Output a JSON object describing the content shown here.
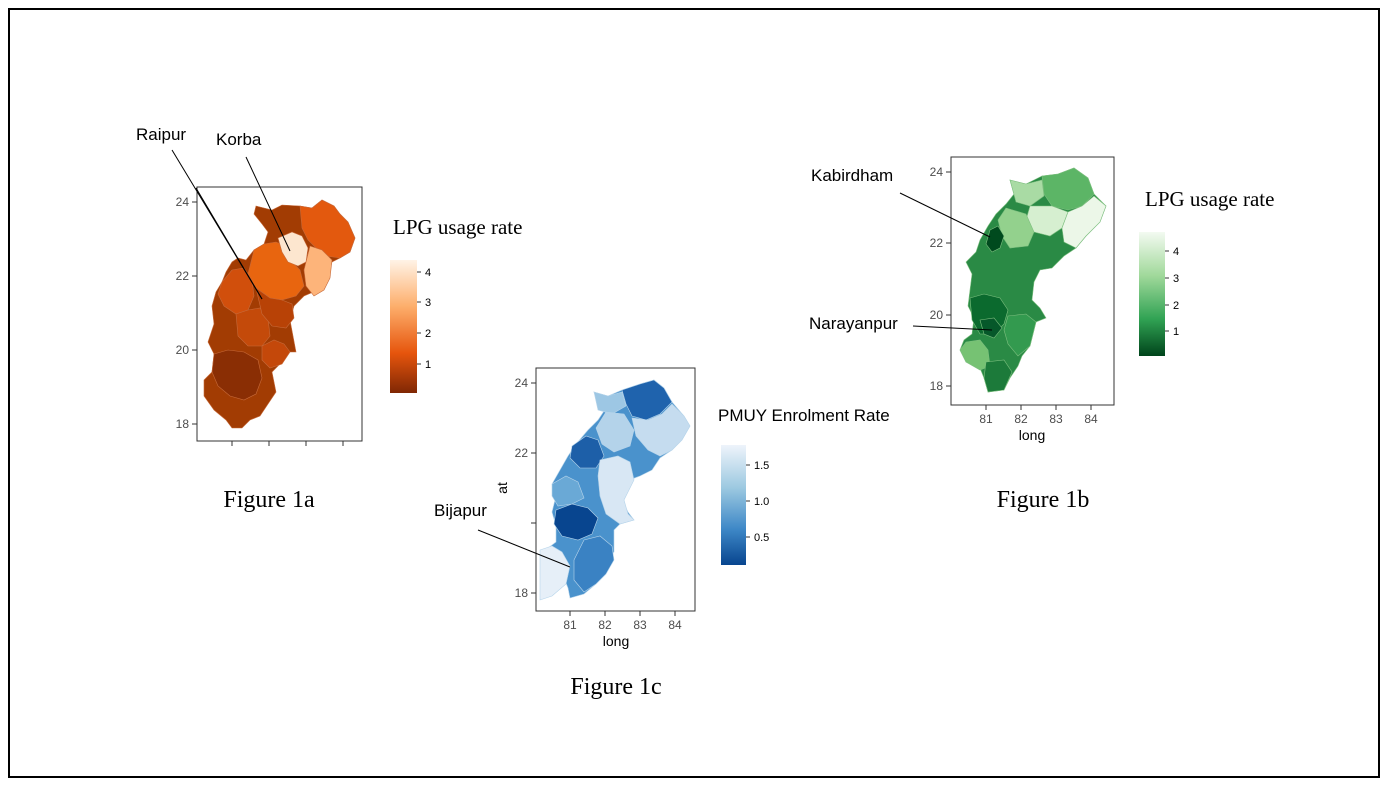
{
  "chart_data": [
    {
      "type": "map",
      "caption": "Figure 1a",
      "legend_title": "LPG usage rate",
      "legend_ticks": [
        "4",
        "3",
        "2",
        "1"
      ],
      "colors": {
        "low": "#7f2704",
        "high": "#fff0e0"
      },
      "y_ticks": [
        "24",
        "22",
        "20",
        "18"
      ],
      "annotations": [
        "Raipur",
        "Korba"
      ]
    },
    {
      "type": "map",
      "caption": "Figure 1b",
      "legend_title": "LPG usage rate",
      "legend_ticks": [
        "4",
        "3",
        "2",
        "1"
      ],
      "colors": {
        "low": "#00441b",
        "high": "#f2faf0"
      },
      "y_ticks": [
        "24",
        "22",
        "20",
        "18"
      ],
      "x_ticks": [
        "81",
        "82",
        "83",
        "84"
      ],
      "xlabel": "long",
      "annotations": [
        "Kabirdham",
        "Narayanpur"
      ]
    },
    {
      "type": "map",
      "caption": "Figure 1c",
      "legend_title": "PMUY Enrolment Rate",
      "legend_ticks": [
        "1.5",
        "1.0",
        "0.5"
      ],
      "colors": {
        "low": "#08458f",
        "high": "#eef4fb"
      },
      "y_ticks": [
        "24",
        "22",
        "18"
      ],
      "x_ticks": [
        "81",
        "82",
        "83",
        "84"
      ],
      "xlabel": "long",
      "ylabel": "at",
      "annotations": [
        "Bijapur"
      ]
    }
  ]
}
